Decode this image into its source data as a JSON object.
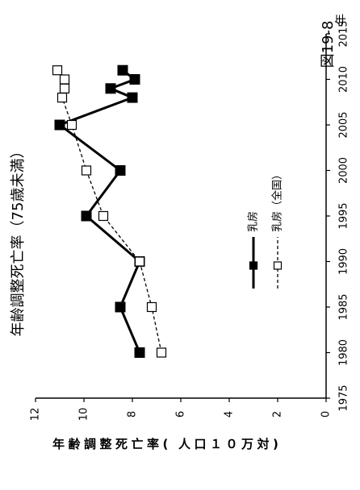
{
  "chart_data": {
    "type": "line",
    "orientation": "rotated-90-ccw",
    "title": "年齢調整死亡率（75歳未満）",
    "figure_label": "図19-8",
    "xlabel": "年",
    "ylabel": "年齢調整死亡率(人口１０万対)",
    "xlim": [
      1975,
      2015
    ],
    "ylim": [
      0,
      12
    ],
    "x_ticks": [
      1975,
      1980,
      1985,
      1990,
      1995,
      2000,
      2005,
      2010,
      2015
    ],
    "y_ticks": [
      0,
      2,
      4,
      6,
      8,
      10,
      12
    ],
    "grid": false,
    "legend_placement": "center-right",
    "series": [
      {
        "name": "乳房",
        "style": "solid-filled-square",
        "color": "#000000",
        "points": [
          {
            "x": 1980,
            "y": 7.7
          },
          {
            "x": 1985,
            "y": 8.5
          },
          {
            "x": 1990,
            "y": 7.7
          },
          {
            "x": 1995,
            "y": 9.9
          },
          {
            "x": 2000,
            "y": 8.5
          },
          {
            "x": 2005,
            "y": 11.0
          },
          {
            "x": 2008,
            "y": 8.0
          },
          {
            "x": 2009,
            "y": 8.9
          },
          {
            "x": 2010,
            "y": 7.9
          },
          {
            "x": 2011,
            "y": 8.4
          }
        ]
      },
      {
        "name": "乳房（全国）",
        "style": "dashed-open-square",
        "color": "#000000",
        "points": [
          {
            "x": 1980,
            "y": 6.8
          },
          {
            "x": 1985,
            "y": 7.2
          },
          {
            "x": 1990,
            "y": 7.7
          },
          {
            "x": 1995,
            "y": 9.2
          },
          {
            "x": 2000,
            "y": 9.9
          },
          {
            "x": 2005,
            "y": 10.5
          },
          {
            "x": 2008,
            "y": 10.9
          },
          {
            "x": 2009,
            "y": 10.8
          },
          {
            "x": 2010,
            "y": 10.8
          },
          {
            "x": 2011,
            "y": 11.1
          }
        ]
      }
    ]
  }
}
